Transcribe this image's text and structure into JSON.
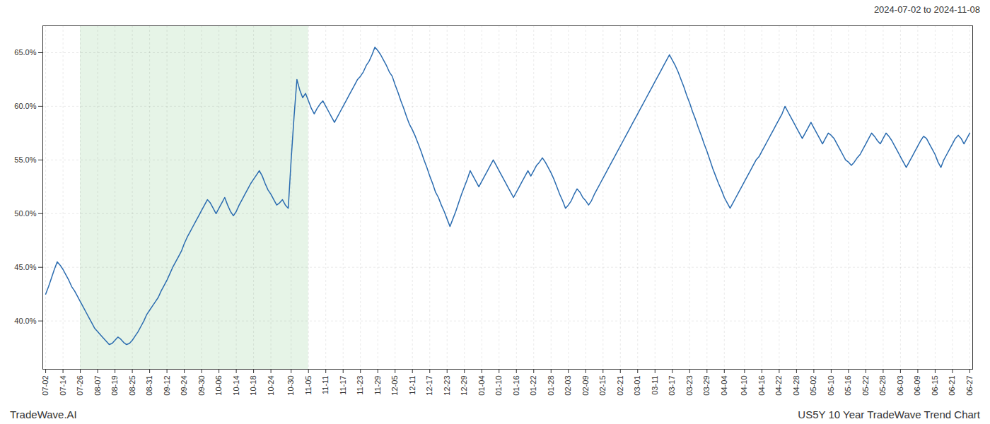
{
  "chart_data": {
    "type": "line",
    "title": "US5Y 10 Year TradeWave Trend Chart",
    "subtitle": "2024-07-02 to 2024-11-08",
    "annotation": "TradeWave.AI",
    "color": "#2b6cb0",
    "grid": true,
    "ylim": [
      35.5,
      67.5
    ],
    "yticks": [
      {
        "value": 40.0,
        "label": "40.0%"
      },
      {
        "value": 45.0,
        "label": "45.0%"
      },
      {
        "value": 50.0,
        "label": "50.0%"
      },
      {
        "value": 55.0,
        "label": "55.0%"
      },
      {
        "value": 60.0,
        "label": "60.0%"
      },
      {
        "value": 65.0,
        "label": "65.0%"
      }
    ],
    "highlight": {
      "from": "07-26",
      "to": "11-05",
      "color": "#c8e6c9"
    },
    "categories": [
      "07-02",
      null,
      null,
      null,
      null,
      null,
      "07-14",
      null,
      null,
      null,
      null,
      null,
      "07-26",
      null,
      null,
      null,
      null,
      null,
      "08-07",
      null,
      null,
      null,
      null,
      null,
      "08-19",
      null,
      null,
      null,
      null,
      null,
      "08-25",
      null,
      null,
      null,
      null,
      null,
      "08-31",
      null,
      null,
      null,
      null,
      null,
      "09-12",
      null,
      null,
      null,
      null,
      null,
      "09-24",
      null,
      null,
      null,
      null,
      null,
      "09-30",
      null,
      null,
      null,
      null,
      null,
      "10-06",
      null,
      null,
      null,
      null,
      null,
      "10-14",
      null,
      null,
      null,
      null,
      null,
      "10-18",
      null,
      null,
      null,
      null,
      null,
      "10-24",
      null,
      null,
      null,
      null,
      null,
      null,
      "10-30",
      null,
      null,
      null,
      null,
      null,
      "11-05",
      null,
      null,
      null,
      null,
      null,
      "11-11",
      null,
      null,
      null,
      null,
      null,
      "11-17",
      null,
      null,
      null,
      null,
      null,
      "11-23",
      null,
      null,
      null,
      null,
      null,
      "11-29",
      null,
      null,
      null,
      null,
      null,
      "12-05",
      null,
      null,
      null,
      null,
      null,
      "12-11",
      null,
      null,
      null,
      null,
      null,
      "12-17",
      null,
      null,
      null,
      null,
      null,
      "12-23",
      null,
      null,
      null,
      null,
      null,
      "12-29",
      null,
      null,
      null,
      null,
      null,
      "01-04",
      null,
      null,
      null,
      null,
      null,
      "01-10",
      null,
      null,
      null,
      null,
      null,
      "01-16",
      null,
      null,
      null,
      null,
      null,
      "01-22",
      null,
      null,
      null,
      null,
      null,
      "01-28",
      null,
      null,
      null,
      null,
      null,
      "02-03",
      null,
      null,
      null,
      null,
      null,
      "02-09",
      null,
      null,
      null,
      null,
      null,
      "02-15",
      null,
      null,
      null,
      null,
      null,
      "02-21",
      null,
      null,
      null,
      null,
      null,
      "03-01",
      null,
      null,
      null,
      null,
      null,
      "03-11",
      null,
      null,
      null,
      null,
      null,
      "03-17",
      null,
      null,
      null,
      null,
      null,
      "03-23",
      null,
      null,
      null,
      null,
      null,
      "03-29",
      null,
      null,
      null,
      null,
      null,
      "04-04",
      null,
      null,
      null,
      null,
      null,
      null,
      "04-10",
      null,
      null,
      null,
      null,
      null,
      "04-16",
      null,
      null,
      null,
      null,
      null,
      "04-22",
      null,
      null,
      null,
      null,
      null,
      "04-28",
      null,
      null,
      null,
      null,
      null,
      "05-02",
      null,
      null,
      null,
      null,
      null,
      "05-10",
      null,
      null,
      null,
      null,
      null,
      "05-16",
      null,
      null,
      null,
      null,
      null,
      "05-22",
      null,
      null,
      null,
      null,
      null,
      "05-28",
      null,
      null,
      null,
      null,
      null,
      "06-03",
      null,
      null,
      null,
      null,
      null,
      "06-09",
      null,
      null,
      null,
      null,
      null,
      "06-15",
      null,
      null,
      null,
      null,
      null,
      "06-21",
      null,
      null,
      null,
      null,
      null,
      "06-27"
    ],
    "values": [
      42.5,
      43.2,
      44.0,
      44.8,
      45.5,
      45.2,
      44.8,
      44.3,
      43.8,
      43.2,
      42.8,
      42.3,
      41.8,
      41.3,
      40.8,
      40.3,
      39.8,
      39.3,
      39.0,
      38.7,
      38.4,
      38.1,
      37.8,
      37.9,
      38.2,
      38.5,
      38.3,
      38.0,
      37.8,
      37.9,
      38.2,
      38.6,
      39.0,
      39.5,
      40.0,
      40.6,
      41.0,
      41.4,
      41.8,
      42.2,
      42.8,
      43.3,
      43.8,
      44.4,
      45.0,
      45.5,
      46.0,
      46.5,
      47.2,
      47.8,
      48.3,
      48.8,
      49.3,
      49.8,
      50.3,
      50.8,
      51.3,
      51.0,
      50.5,
      50.0,
      50.5,
      51.0,
      51.5,
      50.8,
      50.2,
      49.8,
      50.2,
      50.8,
      51.3,
      51.8,
      52.3,
      52.8,
      53.2,
      53.6,
      54.0,
      53.5,
      52.8,
      52.2,
      51.8,
      51.3,
      50.8,
      51.0,
      51.3,
      50.8,
      50.5,
      55.0,
      59.0,
      62.5,
      61.5,
      60.8,
      61.2,
      60.5,
      59.8,
      59.3,
      59.8,
      60.2,
      60.5,
      60.0,
      59.5,
      59.0,
      58.5,
      59.0,
      59.5,
      60.0,
      60.5,
      61.0,
      61.5,
      62.0,
      62.5,
      62.8,
      63.2,
      63.8,
      64.2,
      64.8,
      65.5,
      65.2,
      64.8,
      64.3,
      63.8,
      63.2,
      62.8,
      62.0,
      61.3,
      60.5,
      59.8,
      59.0,
      58.3,
      57.8,
      57.2,
      56.5,
      55.8,
      55.0,
      54.3,
      53.5,
      52.8,
      52.0,
      51.5,
      50.8,
      50.2,
      49.5,
      48.8,
      49.5,
      50.2,
      51.0,
      51.8,
      52.5,
      53.2,
      54.0,
      53.5,
      53.0,
      52.5,
      53.0,
      53.5,
      54.0,
      54.5,
      55.0,
      54.5,
      54.0,
      53.5,
      53.0,
      52.5,
      52.0,
      51.5,
      52.0,
      52.5,
      53.0,
      53.5,
      54.0,
      53.5,
      54.0,
      54.5,
      54.8,
      55.2,
      54.8,
      54.3,
      53.8,
      53.2,
      52.5,
      51.8,
      51.2,
      50.5,
      50.8,
      51.2,
      51.8,
      52.3,
      52.0,
      51.5,
      51.2,
      50.8,
      51.2,
      51.8,
      52.3,
      52.8,
      53.3,
      53.8,
      54.3,
      54.8,
      55.3,
      55.8,
      56.3,
      56.8,
      57.3,
      57.8,
      58.3,
      58.8,
      59.3,
      59.8,
      60.3,
      60.8,
      61.3,
      61.8,
      62.3,
      62.8,
      63.3,
      63.8,
      64.3,
      64.8,
      64.3,
      63.8,
      63.2,
      62.5,
      61.8,
      61.0,
      60.3,
      59.5,
      58.8,
      58.0,
      57.3,
      56.5,
      55.8,
      55.0,
      54.2,
      53.5,
      52.8,
      52.2,
      51.5,
      51.0,
      50.5,
      51.0,
      51.5,
      52.0,
      52.5,
      53.0,
      53.5,
      54.0,
      54.5,
      55.0,
      55.3,
      55.8,
      56.3,
      56.8,
      57.3,
      57.8,
      58.3,
      58.8,
      59.3,
      60.0,
      59.5,
      59.0,
      58.5,
      58.0,
      57.5,
      57.0,
      57.5,
      58.0,
      58.5,
      58.0,
      57.5,
      57.0,
      56.5,
      57.0,
      57.5,
      57.3,
      57.0,
      56.5,
      56.0,
      55.5,
      55.0,
      54.8,
      54.5,
      54.8,
      55.2,
      55.5,
      56.0,
      56.5,
      57.0,
      57.5,
      57.2,
      56.8,
      56.5,
      57.0,
      57.5,
      57.2,
      56.8,
      56.3,
      55.8,
      55.3,
      54.8,
      54.3,
      54.8,
      55.3,
      55.8,
      56.3,
      56.8,
      57.2,
      57.0,
      56.5,
      56.0,
      55.5,
      54.8,
      54.3,
      55.0,
      55.5,
      56.0,
      56.5,
      57.0,
      57.3,
      57.0,
      56.5,
      57.0,
      57.5
    ]
  }
}
